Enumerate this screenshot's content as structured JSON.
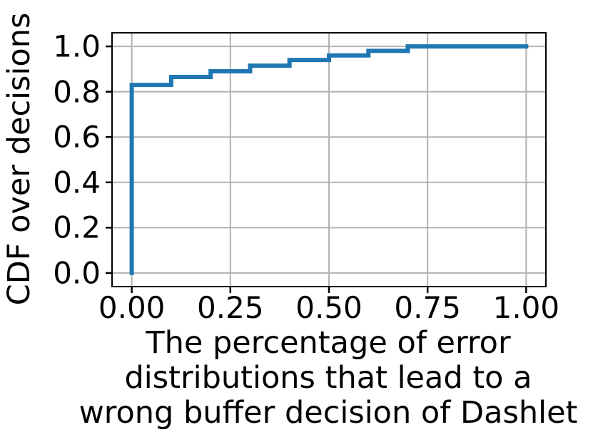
{
  "chart_data": {
    "type": "line",
    "subtype": "cdf-step",
    "title": "",
    "xlabel_lines": [
      "The percentage of error",
      "distributions that lead to a",
      "wrong buffer decision of Dashlet"
    ],
    "ylabel": "CDF over decisions",
    "x_ticks": {
      "values": [
        0.0,
        0.25,
        0.5,
        0.75,
        1.0
      ],
      "labels": [
        "0.00",
        "0.25",
        "0.50",
        "0.75",
        "1.00"
      ]
    },
    "y_ticks": {
      "values": [
        0.0,
        0.2,
        0.4,
        0.6,
        0.8,
        1.0
      ],
      "labels": [
        "0.0",
        "0.2",
        "0.4",
        "0.6",
        "0.8",
        "1.0"
      ]
    },
    "xlim": [
      -0.05,
      1.05
    ],
    "ylim": [
      -0.06,
      1.06
    ],
    "grid": true,
    "legend": "none",
    "series": [
      {
        "name": "CDF over decisions",
        "color": "#1f77b4",
        "line_width": 6,
        "x_start": 0.0,
        "y_start": 0.0,
        "step_x": [
          0.0,
          0.1,
          0.2,
          0.3,
          0.4,
          0.5,
          0.6,
          0.7
        ],
        "step_y": [
          0.83,
          0.865,
          0.89,
          0.915,
          0.94,
          0.96,
          0.98,
          1.0
        ],
        "x_end": 1.0
      }
    ],
    "colors": {
      "line": "#1f77b4",
      "grid": "#b2b2b2",
      "axis": "#000000",
      "text": "#000000"
    }
  }
}
